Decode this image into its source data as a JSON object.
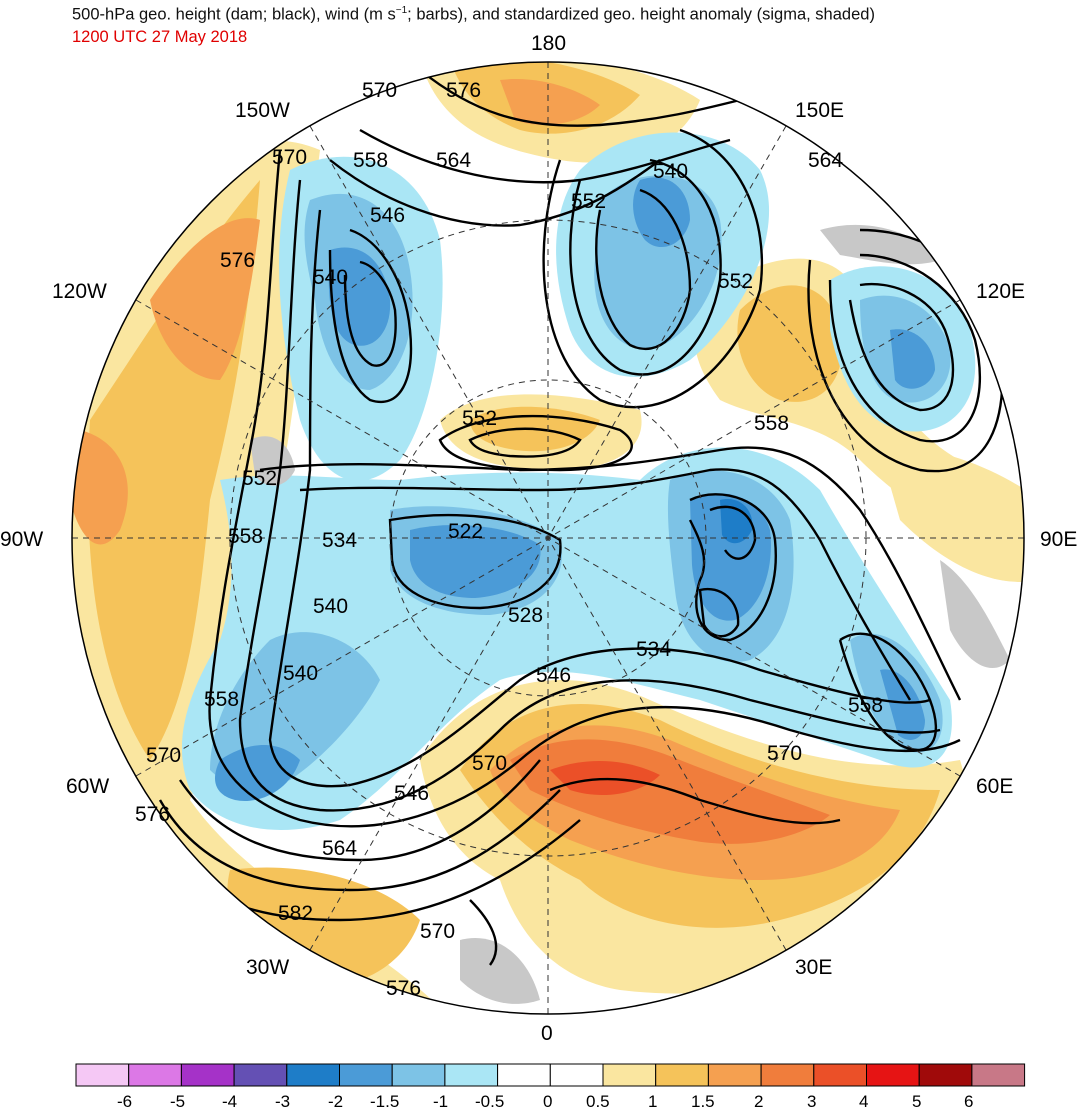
{
  "header": {
    "title_pre": "500-hPa geo. height (dam; black), wind (m s",
    "title_sup": "−1",
    "title_post": "; barbs), and standardized geo. height anomaly (sigma, shaded)",
    "valid_time": "1200 UTC 27 May 2018"
  },
  "map": {
    "projection": "north-polar-stereographic",
    "longitude_labels": [
      "180",
      "150E",
      "120E",
      "90E",
      "60E",
      "30E",
      "0",
      "30W",
      "60W",
      "90W",
      "120W",
      "150W"
    ],
    "contour_labels": [
      "570",
      "576",
      "570",
      "558",
      "564",
      "552",
      "540",
      "564",
      "546",
      "540",
      "576",
      "552",
      "558",
      "552",
      "552",
      "558",
      "534",
      "522",
      "540",
      "528",
      "534",
      "540",
      "546",
      "558",
      "558",
      "570",
      "570",
      "546",
      "564",
      "576",
      "570",
      "582",
      "570",
      "576"
    ]
  },
  "colorbar": {
    "tick_labels": [
      "-6",
      "-5",
      "-4",
      "-3",
      "-2",
      "-1.5",
      "-1",
      "-0.5",
      "0",
      "0.5",
      "1",
      "1.5",
      "2",
      "3",
      "4",
      "5",
      "6"
    ],
    "colors": [
      "#f5c8f5",
      "#dc78e6",
      "#a532c8",
      "#6450b4",
      "#1e7dc8",
      "#4b9bd7",
      "#7dc3e6",
      "#aae6f5",
      "#ffffff",
      "#ffffff",
      "#fae6a0",
      "#f5c35a",
      "#f5a050",
      "#f07d3c",
      "#eb5028",
      "#e61414",
      "#a00a0a",
      "#c87887"
    ]
  }
}
